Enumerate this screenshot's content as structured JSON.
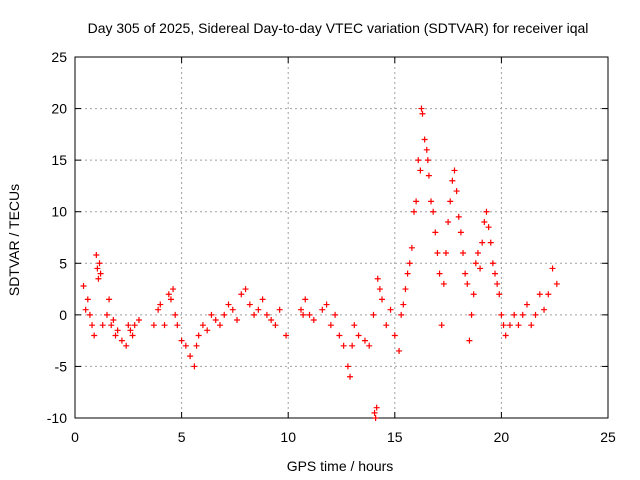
{
  "chart_data": {
    "type": "scatter",
    "title": "Day 305 of 2025, Sidereal Day-to-day VTEC variation (SDTVAR) for receiver iqal",
    "xlabel": "GPS time / hours",
    "ylabel": "SDTVAR / TECUs",
    "xlim": [
      0,
      25
    ],
    "ylim": [
      -10,
      25
    ],
    "xticks": [
      "0",
      "5",
      "10",
      "15",
      "20",
      "25"
    ],
    "yticks": [
      "25",
      "20",
      "15",
      "10",
      "5",
      "0",
      "-5",
      "-10"
    ],
    "grid": true,
    "marker": "+",
    "series_color": "#ff0000",
    "series": [
      {
        "name": "SDTVAR",
        "x": [
          0.4,
          0.5,
          0.6,
          0.7,
          0.8,
          0.9,
          1.0,
          1.05,
          1.1,
          1.15,
          1.2,
          1.3,
          1.5,
          1.6,
          1.7,
          1.8,
          1.9,
          2.0,
          2.2,
          2.4,
          2.5,
          2.6,
          2.7,
          2.8,
          3.0,
          3.7,
          3.9,
          4.0,
          4.2,
          4.4,
          4.5,
          4.6,
          4.7,
          4.8,
          5.0,
          5.2,
          5.4,
          5.6,
          5.7,
          5.8,
          6.0,
          6.2,
          6.4,
          6.6,
          6.8,
          7.0,
          7.2,
          7.4,
          7.6,
          7.8,
          8.0,
          8.2,
          8.4,
          8.6,
          8.8,
          9.0,
          9.2,
          9.4,
          9.6,
          9.9,
          10.6,
          10.7,
          10.8,
          11.0,
          11.2,
          11.6,
          11.8,
          12.0,
          12.2,
          12.4,
          12.6,
          12.8,
          12.9,
          13.0,
          13.1,
          13.3,
          13.6,
          13.8,
          14.0,
          14.05,
          14.1,
          14.15,
          14.2,
          14.3,
          14.4,
          14.6,
          14.8,
          15.0,
          15.2,
          15.3,
          15.4,
          15.5,
          15.6,
          15.7,
          15.8,
          15.9,
          16.0,
          16.1,
          16.2,
          16.25,
          16.3,
          16.4,
          16.5,
          16.55,
          16.6,
          16.7,
          16.8,
          16.9,
          17.0,
          17.1,
          17.2,
          17.3,
          17.4,
          17.5,
          17.6,
          17.7,
          17.8,
          17.9,
          18.0,
          18.1,
          18.2,
          18.3,
          18.4,
          18.5,
          18.6,
          18.7,
          18.8,
          18.9,
          19.0,
          19.1,
          19.2,
          19.3,
          19.4,
          19.5,
          19.6,
          19.7,
          19.8,
          19.9,
          20.0,
          20.1,
          20.2,
          20.4,
          20.6,
          20.8,
          21.0,
          21.2,
          21.4,
          21.6,
          21.8,
          22.0,
          22.2,
          22.4,
          22.6
        ],
        "y": [
          2.8,
          0.5,
          1.5,
          0,
          -1,
          -2,
          5.8,
          4.5,
          3.5,
          5,
          4,
          -1,
          0,
          1.5,
          -1,
          -0.5,
          -2,
          -1.5,
          -2.5,
          -3,
          -1,
          -1.5,
          -2,
          -1,
          -0.5,
          -1,
          0.5,
          1,
          -1,
          2,
          1.5,
          2.5,
          0,
          -1,
          -2.5,
          -3,
          -4,
          -5,
          -3,
          -2,
          -1,
          -1.5,
          0,
          -0.5,
          -1,
          0,
          1,
          0.5,
          -0.5,
          2,
          2.5,
          1,
          0,
          0.5,
          1.5,
          0,
          -0.5,
          -1,
          0.5,
          -2,
          0.5,
          0,
          1.5,
          0,
          -0.5,
          0.5,
          1,
          -1,
          0,
          -2,
          -3,
          -5,
          -6,
          -3,
          -1,
          -2,
          -2.5,
          -3,
          0,
          -9.5,
          -10,
          -9,
          3.5,
          2.5,
          1.5,
          -1,
          0.5,
          -2,
          -3.5,
          0,
          1,
          2.5,
          4,
          5,
          6.5,
          10,
          11,
          15,
          14,
          20,
          19.5,
          17,
          16,
          15,
          13.5,
          11,
          10,
          8,
          6,
          4,
          -1,
          3,
          6,
          9,
          11,
          13,
          14,
          12,
          9.5,
          8,
          6,
          4,
          3,
          -2.5,
          0,
          2,
          5,
          6,
          4.5,
          7,
          9,
          10,
          8.5,
          7,
          5,
          4,
          3,
          2,
          0,
          -1,
          -2,
          -1,
          0,
          -1,
          0,
          1,
          -1,
          0,
          2,
          0.5,
          2,
          4.5,
          3
        ]
      }
    ]
  }
}
